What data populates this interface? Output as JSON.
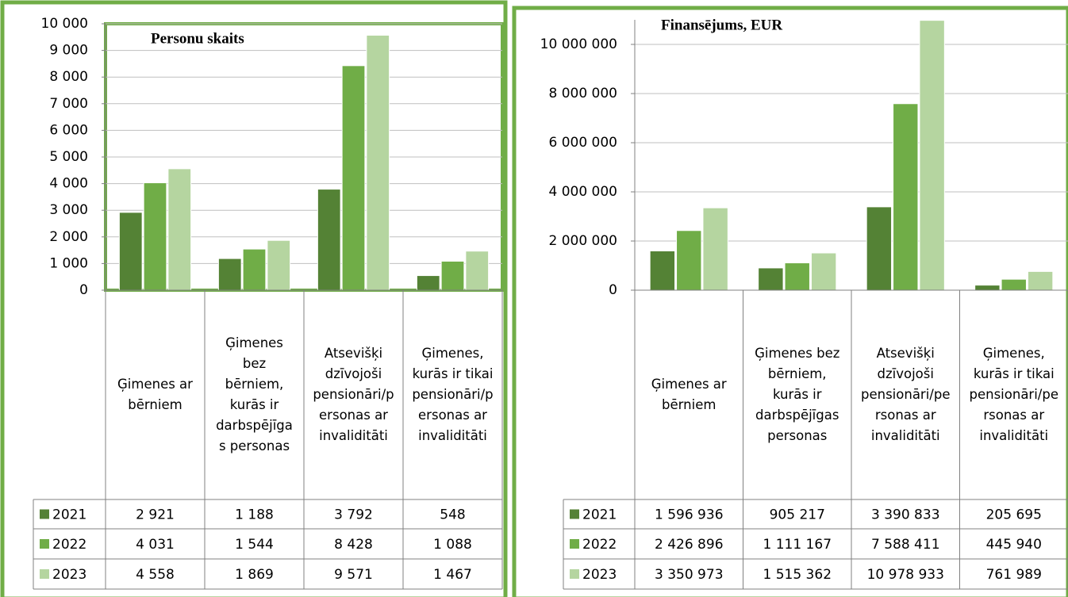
{
  "chart_data": [
    {
      "type": "bar",
      "title": "Personu skaits",
      "categories": [
        "Ģimenes ar bērniem",
        "Ģimenes bez bērniem, kurās ir darbspējīgas personas",
        "Atsevišķi dzīvojoši pensionāri/personas ar invaliditāti",
        "Ģimenes, kurās ir tikai pensionāri/personas ar invaliditāti"
      ],
      "series": [
        {
          "name": "2021",
          "color": "#548235",
          "values": [
            2921,
            1188,
            3792,
            548
          ],
          "value_labels": [
            "2 921",
            "1 188",
            "3 792",
            "548"
          ]
        },
        {
          "name": "2022",
          "color": "#70ad47",
          "values": [
            4031,
            1544,
            8428,
            1088
          ],
          "value_labels": [
            "4 031",
            "1 544",
            "8 428",
            "1 088"
          ]
        },
        {
          "name": "2023",
          "color": "#b5d5a0",
          "values": [
            4558,
            1869,
            9571,
            1467
          ],
          "value_labels": [
            "4 558",
            "1 869",
            "9 571",
            "1 467"
          ]
        }
      ],
      "ylim": [
        0,
        10000
      ],
      "yticks": [
        0,
        {
          "value": 1000,
          "label": "1 000"
        },
        {
          "value": 2000,
          "label": "2 000"
        },
        {
          "value": 3000,
          "label": "3 000"
        },
        {
          "value": 4000,
          "label": "4 000"
        },
        {
          "value": 5000,
          "label": "5 000"
        },
        {
          "value": 6000,
          "label": "6 000"
        },
        {
          "value": 7000,
          "label": "7 000"
        },
        {
          "value": 8000,
          "label": "8 000"
        },
        {
          "value": 9000,
          "label": "9 000"
        },
        {
          "value": 10000,
          "label": "10 000"
        }
      ],
      "grid": true
    },
    {
      "type": "bar",
      "title": "Finansējums, EUR",
      "categories": [
        "Ģimenes ar bērniem",
        "Ģimenes bez bērniem, kurās ir darbspējīgas personas",
        "Atsevišķi dzīvojoši pensionāri/personas ar invaliditāti",
        "Ģimenes, kurās ir tikai pensionāri/personas ar invaliditāti"
      ],
      "series": [
        {
          "name": "2021",
          "color": "#548235",
          "values": [
            1596936,
            905217,
            3390833,
            205695
          ],
          "value_labels": [
            "1 596 936",
            "905 217",
            "3 390 833",
            "205 695"
          ]
        },
        {
          "name": "2022",
          "color": "#70ad47",
          "values": [
            2426896,
            1111167,
            7588411,
            445940
          ],
          "value_labels": [
            "2 426 896",
            "1 111 167",
            "7 588 411",
            "445 940"
          ]
        },
        {
          "name": "2023",
          "color": "#b5d5a0",
          "values": [
            3350973,
            1515362,
            10978933,
            761989
          ],
          "value_labels": [
            "3 350 973",
            "1 515 362",
            "10 978 933",
            "761 989"
          ]
        }
      ],
      "ylim": [
        0,
        11000000
      ],
      "yticks": [
        0,
        {
          "value": 2000000,
          "label": "2 000 000"
        },
        {
          "value": 4000000,
          "label": "4 000 000"
        },
        {
          "value": 6000000,
          "label": "6 000 000"
        },
        {
          "value": 8000000,
          "label": "8 000 000"
        },
        {
          "value": 10000000,
          "label": "10 000 000"
        }
      ],
      "grid": true
    }
  ]
}
